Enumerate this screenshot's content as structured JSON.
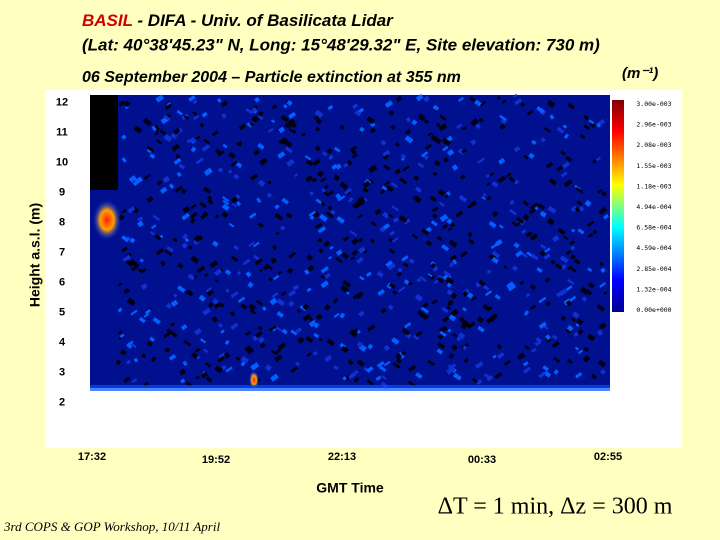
{
  "chart_data": {
    "type": "heatmap",
    "title_highlight": "BASIL",
    "title_rest": " - DIFA - Univ. of Basilicata Lidar",
    "title_line2": "(Lat: 40°38'45.23\" N, Long: 15°48'29.32\" E, Site elevation: 730 m)",
    "subtitle": "06 September 2004 – Particle extinction at 355 nm",
    "unit": "(m⁻¹)",
    "y_label": "Height a.s.l. (m)",
    "x_label": "GMT Time",
    "ylim": [
      0.75,
      12.25
    ],
    "yticks": [
      2,
      3,
      4,
      5,
      6,
      7,
      8,
      9,
      10,
      11,
      12
    ],
    "x_tick_labels": [
      "17:32",
      "19:52",
      "22:13",
      "00:33",
      "02:55"
    ],
    "colorbar_labels": [
      "3.00e-003",
      "2.96e-003",
      "2.08e-003",
      "1.55e-003",
      "1.18e-003",
      "4.94e-004",
      "6.58e-004",
      "4.59e-004",
      "2.85e-004",
      "1.32e-004",
      "0.00e+000"
    ],
    "footer_left": "3rd COPS & GOP Workshop, 10/11 April",
    "footer_right": "ΔT = 1 min, Δz = 300 m"
  }
}
